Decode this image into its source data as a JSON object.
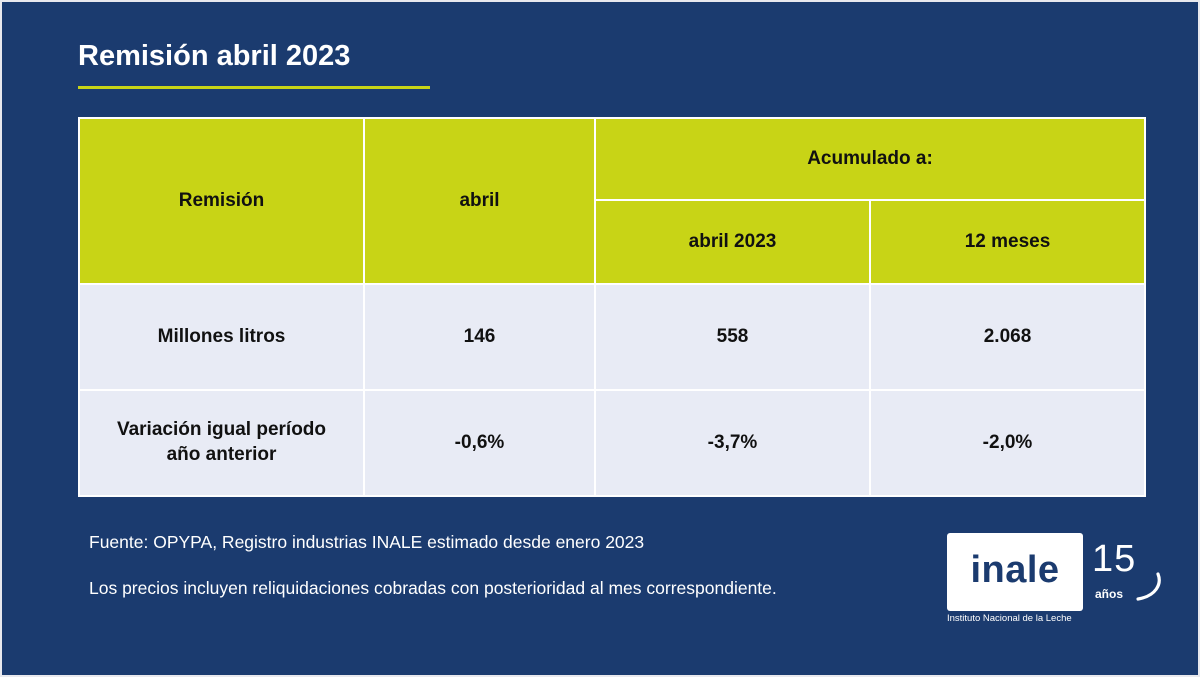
{
  "title": "Remisión abril 2023",
  "table": {
    "header_remision": "Remisión",
    "header_abril": "abril",
    "header_acumulado": "Acumulado a:",
    "header_acum_abril": "abril 2023",
    "header_acum_12m": "12 meses",
    "rows": [
      {
        "label": "Millones litros",
        "abril": "146",
        "acum_abril": "558",
        "acum_12m": "2.068"
      },
      {
        "label_line1": "Variación igual período",
        "label_line2": "año anterior",
        "abril": "-0,6%",
        "acum_abril": "-3,7%",
        "acum_12m": "-2,0%"
      }
    ]
  },
  "notes": {
    "source": "Fuente: OPYPA, Registro industrias INALE estimado desde enero 2023",
    "prices": "Los precios incluyen reliquidaciones cobradas con posterioridad al mes correspondiente."
  },
  "logo": {
    "name": "inale",
    "subtitle": "Instituto Nacional de la Leche",
    "anniversary_number": "15",
    "anniversary_word": "años"
  },
  "colors": {
    "background": "#1b3b6f",
    "accent": "#c8d416",
    "row_fill": "#e8ebf5"
  }
}
